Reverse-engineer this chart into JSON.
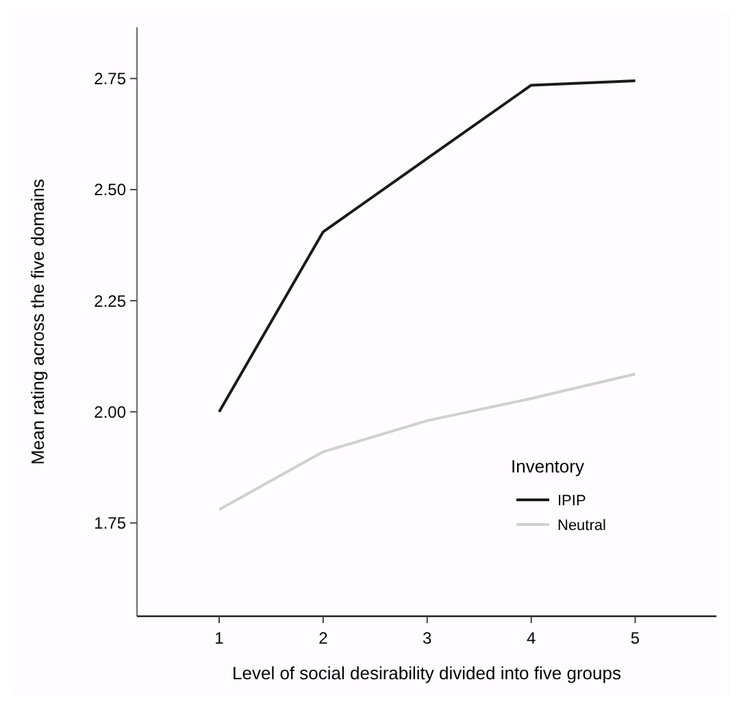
{
  "chart_data": {
    "type": "line",
    "xlabel": "Level of social desirability divided into five groups",
    "ylabel": "Mean rating across the five domains",
    "legend_title": "Inventory",
    "x": [
      1,
      2,
      3,
      4,
      5
    ],
    "series": [
      {
        "name": "IPIP",
        "color": "#1a1a1a",
        "values": [
          2.0,
          2.405,
          2.57,
          2.735,
          2.745
        ]
      },
      {
        "name": "Neutral",
        "color": "#d0d0d0",
        "values": [
          1.78,
          1.91,
          1.98,
          2.03,
          2.085
        ]
      }
    ],
    "xlim": [
      0.21,
      5.78
    ],
    "ylim": [
      1.54,
      2.865
    ],
    "xticks": [
      1,
      2,
      3,
      4,
      5
    ],
    "yticks": [
      {
        "value": 1.75,
        "label": "1.75"
      },
      {
        "value": 2,
        "label": "2.00"
      },
      {
        "value": 2.25,
        "label": "2.25"
      },
      {
        "value": 2.5,
        "label": "2.50"
      },
      {
        "value": 2.75,
        "label": "2.75"
      }
    ],
    "grid": false,
    "legend": "bottom right",
    "marker": "none",
    "line_style": "solid"
  }
}
